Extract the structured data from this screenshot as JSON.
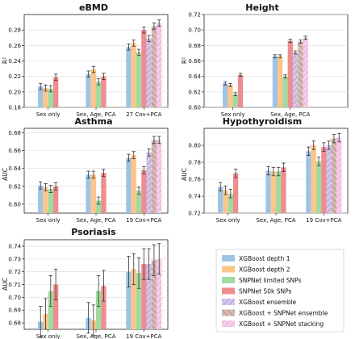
{
  "chart_data": [
    {
      "type": "bar",
      "title": "eBMD",
      "ylabel": "R²",
      "ylim": [
        0.18,
        0.3
      ],
      "yticks": [
        0.18,
        0.2,
        0.22,
        0.24,
        0.26,
        0.28
      ],
      "groups": [
        "Sex only",
        "Sex, Age, PCA",
        "27 Cov+PCA"
      ],
      "series": [
        {
          "name": "XGBoost depth 1",
          "values": [
            0.207,
            0.223,
            0.258
          ],
          "err": [
            0.004,
            0.004,
            0.004
          ]
        },
        {
          "name": "XGBoost depth 2",
          "values": [
            0.205,
            0.229,
            0.263
          ],
          "err": [
            0.004,
            0.004,
            0.004
          ]
        },
        {
          "name": "SNPNet limited SNPs",
          "values": [
            0.204,
            0.213,
            0.251
          ],
          "err": [
            0.004,
            0.004,
            0.004
          ]
        },
        {
          "name": "SNPNet 50k SNPs",
          "values": [
            0.219,
            0.22,
            0.28
          ],
          "err": [
            0.004,
            0.004,
            0.004
          ]
        },
        {
          "name": "XGBoost ensemble",
          "values": [
            null,
            null,
            0.269
          ],
          "err": [
            null,
            null,
            0.004
          ]
        },
        {
          "name": "XGBoost + SNPNet ensemble",
          "values": [
            null,
            null,
            0.285
          ],
          "err": [
            null,
            null,
            0.004
          ]
        },
        {
          "name": "XGBoost + SNPNet stacking",
          "values": [
            null,
            null,
            0.289
          ],
          "err": [
            null,
            null,
            0.004
          ]
        }
      ]
    },
    {
      "type": "bar",
      "title": "Height",
      "ylabel": "R²",
      "ylim": [
        0.6,
        0.72
      ],
      "yticks": [
        0.6,
        0.62,
        0.64,
        0.66,
        0.68,
        0.7,
        0.72
      ],
      "groups": [
        "Sex only",
        "Sex, Age, PCA"
      ],
      "series": [
        {
          "name": "XGBoost depth 1",
          "values": [
            0.631,
            0.666
          ],
          "err": [
            0.002,
            0.002
          ]
        },
        {
          "name": "XGBoost depth 2",
          "values": [
            0.629,
            0.666
          ],
          "err": [
            0.002,
            0.002
          ]
        },
        {
          "name": "SNPNet limited SNPs",
          "values": [
            0.617,
            0.64
          ],
          "err": [
            0.002,
            0.002
          ]
        },
        {
          "name": "SNPNet 50k SNPs",
          "values": [
            0.642,
            0.686
          ],
          "err": [
            0.002,
            0.002
          ]
        },
        {
          "name": "XGBoost ensemble",
          "values": [
            null,
            0.671
          ],
          "err": [
            null,
            0.002
          ]
        },
        {
          "name": "XGBoost + SNPNet ensemble",
          "values": [
            null,
            0.685
          ],
          "err": [
            null,
            0.002
          ]
        },
        {
          "name": "XGBoost + SNPNet stacking",
          "values": [
            null,
            0.69
          ],
          "err": [
            null,
            0.002
          ]
        }
      ]
    },
    {
      "type": "bar",
      "title": "Asthma",
      "ylabel": "AUC",
      "ylim": [
        0.59,
        0.685
      ],
      "yticks": [
        0.6,
        0.62,
        0.64,
        0.66,
        0.68
      ],
      "groups": [
        "Sex only",
        "Sex, Age, PCA",
        "19 Cov+PCA"
      ],
      "series": [
        {
          "name": "XGBoost depth 1",
          "values": [
            0.621,
            0.633,
            0.652
          ],
          "err": [
            0.004,
            0.004,
            0.004
          ]
        },
        {
          "name": "XGBoost depth 2",
          "values": [
            0.619,
            0.633,
            0.655
          ],
          "err": [
            0.004,
            0.004,
            0.004
          ]
        },
        {
          "name": "SNPNet limited SNPs",
          "values": [
            0.617,
            0.604,
            0.615
          ],
          "err": [
            0.004,
            0.004,
            0.004
          ]
        },
        {
          "name": "SNPNet 50k SNPs",
          "values": [
            0.62,
            0.635,
            0.638
          ],
          "err": [
            0.004,
            0.004,
            0.004
          ]
        },
        {
          "name": "XGBoost ensemble",
          "values": [
            null,
            null,
            0.658
          ],
          "err": [
            null,
            null,
            0.004
          ]
        },
        {
          "name": "XGBoost + SNPNet ensemble",
          "values": [
            null,
            null,
            0.672
          ],
          "err": [
            null,
            null,
            0.004
          ]
        },
        {
          "name": "XGBoost + SNPNet stacking",
          "values": [
            null,
            null,
            0.672
          ],
          "err": [
            null,
            null,
            0.004
          ]
        }
      ]
    },
    {
      "type": "bar",
      "title": "Hypothyroidism",
      "ylabel": "AUC",
      "ylim": [
        0.72,
        0.82
      ],
      "yticks": [
        0.72,
        0.74,
        0.76,
        0.78,
        0.8
      ],
      "groups": [
        "Sex only",
        "Sex, Age, PCA",
        "19 Cov+PCA"
      ],
      "series": [
        {
          "name": "XGBoost depth 1",
          "values": [
            0.751,
            0.77,
            0.793
          ],
          "err": [
            0.005,
            0.005,
            0.005
          ]
        },
        {
          "name": "XGBoost depth 2",
          "values": [
            0.747,
            0.769,
            0.8
          ],
          "err": [
            0.005,
            0.005,
            0.005
          ]
        },
        {
          "name": "SNPNet limited SNPs",
          "values": [
            0.743,
            0.769,
            0.781
          ],
          "err": [
            0.005,
            0.005,
            0.005
          ]
        },
        {
          "name": "SNPNet 50k SNPs",
          "values": [
            0.767,
            0.774,
            0.798
          ],
          "err": [
            0.005,
            0.005,
            0.005
          ]
        },
        {
          "name": "XGBoost ensemble",
          "values": [
            null,
            null,
            0.8
          ],
          "err": [
            null,
            null,
            0.005
          ]
        },
        {
          "name": "XGBoost + SNPNet ensemble",
          "values": [
            null,
            null,
            0.808
          ],
          "err": [
            null,
            null,
            0.005
          ]
        },
        {
          "name": "XGBoost + SNPNet stacking",
          "values": [
            null,
            null,
            0.809
          ],
          "err": [
            null,
            null,
            0.005
          ]
        }
      ]
    },
    {
      "type": "bar",
      "title": "Psoriasis",
      "ylabel": "AUC",
      "ylim": [
        0.675,
        0.745
      ],
      "yticks": [
        0.68,
        0.69,
        0.7,
        0.71,
        0.72,
        0.73,
        0.74
      ],
      "groups": [
        "Sex only",
        "Sex, Age, PCA",
        "19 Cov+PCA"
      ],
      "series": [
        {
          "name": "XGBoost depth 1",
          "values": [
            0.681,
            0.684,
            0.72
          ],
          "err": [
            0.012,
            0.012,
            0.012
          ]
        },
        {
          "name": "XGBoost depth 2",
          "values": [
            0.687,
            0.682,
            0.722
          ],
          "err": [
            0.012,
            0.012,
            0.012
          ]
        },
        {
          "name": "SNPNet limited SNPs",
          "values": [
            0.705,
            0.705,
            0.719
          ],
          "err": [
            0.012,
            0.012,
            0.012
          ]
        },
        {
          "name": "SNPNet 50k SNPs",
          "values": [
            0.71,
            0.709,
            0.726
          ],
          "err": [
            0.012,
            0.012,
            0.012
          ]
        },
        {
          "name": "XGBoost ensemble",
          "values": [
            null,
            null,
            0.726
          ],
          "err": [
            null,
            null,
            0.012
          ]
        },
        {
          "name": "XGBoost + SNPNet ensemble",
          "values": [
            null,
            null,
            0.729
          ],
          "err": [
            null,
            null,
            0.012
          ]
        },
        {
          "name": "XGBoost + SNPNet stacking",
          "values": [
            null,
            null,
            0.73
          ],
          "err": [
            null,
            null,
            0.012
          ]
        }
      ]
    }
  ],
  "legend": {
    "placement": "bottom-right",
    "items": [
      {
        "label": "XGBoost depth 1",
        "color": "#9ec3e6",
        "hatch": "none"
      },
      {
        "label": "XGBoost depth 2",
        "color": "#fdc58a",
        "hatch": "none"
      },
      {
        "label": "SNPNet limited SNPs",
        "color": "#9fdb9f",
        "hatch": "none"
      },
      {
        "label": "SNPNet 50k SNPs",
        "color": "#ee8d8f",
        "hatch": "none"
      },
      {
        "label": "XGBoost ensemble",
        "color": "#c8b6e2",
        "hatch": "diag"
      },
      {
        "label": "XGBoost + SNPNet ensemble",
        "color": "#c9a8a0",
        "hatch": "diag"
      },
      {
        "label": "XGBoost + SNPNet stacking",
        "color": "#f3bfe4",
        "hatch": "diag"
      }
    ]
  }
}
